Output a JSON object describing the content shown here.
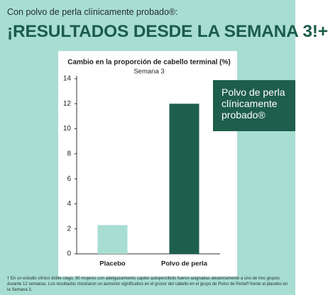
{
  "header": {
    "intro": "Con polvo de perla clínicamente probado®:",
    "headline": "¡RESULTADOS DESDE LA SEMANA 3!+"
  },
  "chart_data": {
    "type": "bar",
    "title": "Cambio en la proporción de cabello terminal (%)",
    "subtitle": "Semana 3",
    "categories": [
      "Placebo",
      "Polvo de perla"
    ],
    "values": [
      2.3,
      12
    ],
    "colors": [
      "#a8ddd2",
      "#1e5e4c"
    ],
    "ylim": [
      0,
      14
    ],
    "yticks": [
      0,
      2,
      4,
      6,
      8,
      10,
      12,
      14
    ],
    "grid": false
  },
  "callout": "Polvo de perla clínicamente probado®",
  "footnote": "† En un estudio clínico doble ciego, 90 mujeres con adelgazamiento capilar autopercibido fueron asignadas aleatoriamente a uno de tres grupos durante 12 semanas. Los resultados mostraron un aumento significativo en el grosor del cabello en el grupo de Polvo de Perla® frente al placebo en la Semana 3."
}
